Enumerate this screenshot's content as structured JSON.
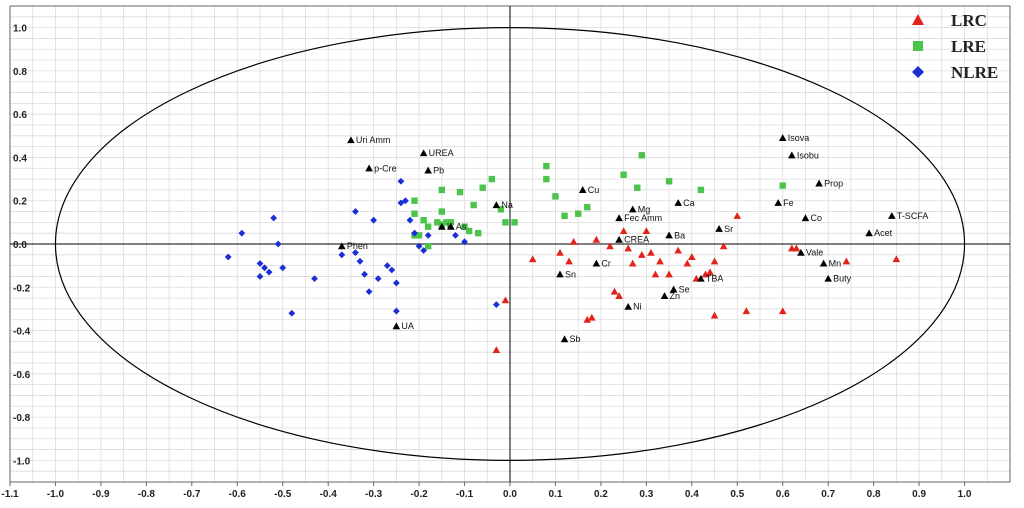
{
  "chart_data": {
    "type": "scatter",
    "title": "",
    "xlabel": "",
    "ylabel": "",
    "xlim": [
      -1.1,
      1.1
    ],
    "ylim": [
      -1.1,
      1.1
    ],
    "grid": true,
    "legend_position": "top-right",
    "x_ticks": [
      "-1.1",
      "-1.0",
      "-0.9",
      "-0.8",
      "-0.7",
      "-0.6",
      "-0.5",
      "-0.4",
      "-0.3",
      "-0.2",
      "-0.1",
      "0.0",
      "0.1",
      "0.2",
      "0.3",
      "0.4",
      "0.5",
      "0.6",
      "0.7",
      "0.8",
      "0.9",
      "1.0"
    ],
    "y_ticks": [
      "1.0",
      "0.8",
      "0.6",
      "0.4",
      "0.2",
      "0.0",
      "-0.2",
      "-0.4",
      "-0.6",
      "-0.8",
      "-1.0"
    ],
    "unit_circle": true,
    "series": [
      {
        "name": "LRC",
        "color": "#e2231a",
        "marker": "triangle",
        "points": [
          [
            0.05,
            -0.07
          ],
          [
            0.11,
            -0.04
          ],
          [
            0.13,
            -0.08
          ],
          [
            0.14,
            0.01
          ],
          [
            0.17,
            -0.35
          ],
          [
            0.18,
            -0.34
          ],
          [
            0.22,
            -0.01
          ],
          [
            0.23,
            -0.22
          ],
          [
            0.24,
            -0.24
          ],
          [
            0.25,
            0.06
          ],
          [
            0.26,
            -0.02
          ],
          [
            0.27,
            -0.09
          ],
          [
            0.29,
            -0.05
          ],
          [
            0.31,
            -0.04
          ],
          [
            0.32,
            -0.14
          ],
          [
            0.33,
            -0.08
          ],
          [
            0.35,
            -0.14
          ],
          [
            0.37,
            -0.03
          ],
          [
            0.39,
            -0.09
          ],
          [
            0.4,
            -0.06
          ],
          [
            0.41,
            -0.16
          ],
          [
            0.43,
            -0.14
          ],
          [
            0.44,
            -0.13
          ],
          [
            0.45,
            -0.08
          ],
          [
            0.45,
            -0.33
          ],
          [
            0.47,
            -0.01
          ],
          [
            0.5,
            0.13
          ],
          [
            0.52,
            -0.31
          ],
          [
            0.6,
            -0.31
          ],
          [
            0.62,
            -0.02
          ],
          [
            0.63,
            -0.02
          ],
          [
            0.74,
            -0.08
          ],
          [
            0.85,
            -0.07
          ],
          [
            -0.01,
            -0.26
          ],
          [
            -0.03,
            -0.49
          ],
          [
            0.3,
            0.06
          ],
          [
            0.19,
            0.02
          ]
        ]
      },
      {
        "name": "LRE",
        "color": "#4cc44c",
        "marker": "square",
        "points": [
          [
            -0.21,
            0.2
          ],
          [
            -0.21,
            0.14
          ],
          [
            -0.2,
            0.04
          ],
          [
            -0.19,
            0.11
          ],
          [
            -0.18,
            0.08
          ],
          [
            -0.18,
            -0.01
          ],
          [
            -0.16,
            0.1
          ],
          [
            -0.15,
            0.09
          ],
          [
            -0.15,
            0.25
          ],
          [
            -0.15,
            0.15
          ],
          [
            -0.14,
            0.1
          ],
          [
            -0.13,
            0.1
          ],
          [
            -0.11,
            0.24
          ],
          [
            -0.1,
            0.08
          ],
          [
            -0.09,
            0.06
          ],
          [
            -0.08,
            0.18
          ],
          [
            -0.07,
            0.05
          ],
          [
            -0.06,
            0.26
          ],
          [
            -0.04,
            0.3
          ],
          [
            -0.02,
            0.16
          ],
          [
            -0.01,
            0.1
          ],
          [
            0.01,
            0.1
          ],
          [
            0.08,
            0.3
          ],
          [
            0.08,
            0.36
          ],
          [
            0.1,
            0.22
          ],
          [
            0.12,
            0.13
          ],
          [
            0.15,
            0.14
          ],
          [
            0.17,
            0.17
          ],
          [
            0.25,
            0.32
          ],
          [
            0.28,
            0.26
          ],
          [
            0.29,
            0.41
          ],
          [
            0.35,
            0.29
          ],
          [
            0.42,
            0.25
          ],
          [
            -0.21,
            0.04
          ],
          [
            0.6,
            0.27
          ]
        ]
      },
      {
        "name": "NLRE",
        "color": "#1a2fd6",
        "marker": "diamond",
        "points": [
          [
            -0.62,
            -0.06
          ],
          [
            -0.59,
            0.05
          ],
          [
            -0.55,
            -0.09
          ],
          [
            -0.55,
            -0.15
          ],
          [
            -0.54,
            -0.11
          ],
          [
            -0.53,
            -0.13
          ],
          [
            -0.52,
            0.12
          ],
          [
            -0.51,
            0.0
          ],
          [
            -0.5,
            -0.11
          ],
          [
            -0.48,
            -0.32
          ],
          [
            -0.43,
            -0.16
          ],
          [
            -0.37,
            -0.05
          ],
          [
            -0.34,
            0.15
          ],
          [
            -0.34,
            -0.04
          ],
          [
            -0.33,
            -0.08
          ],
          [
            -0.32,
            -0.14
          ],
          [
            -0.31,
            -0.22
          ],
          [
            -0.3,
            0.11
          ],
          [
            -0.29,
            -0.16
          ],
          [
            -0.27,
            -0.1
          ],
          [
            -0.26,
            -0.12
          ],
          [
            -0.25,
            -0.18
          ],
          [
            -0.25,
            -0.31
          ],
          [
            -0.24,
            0.29
          ],
          [
            -0.24,
            0.19
          ],
          [
            -0.22,
            0.11
          ],
          [
            -0.21,
            0.05
          ],
          [
            -0.2,
            -0.01
          ],
          [
            -0.19,
            -0.03
          ],
          [
            -0.18,
            0.04
          ],
          [
            -0.12,
            0.04
          ],
          [
            -0.1,
            0.01
          ],
          [
            -0.03,
            -0.28
          ],
          [
            -0.23,
            0.2
          ]
        ]
      }
    ],
    "variables": [
      {
        "label": "Uri Amm",
        "x": -0.35,
        "y": 0.48
      },
      {
        "label": "UREA",
        "x": -0.19,
        "y": 0.42
      },
      {
        "label": "p-Cre",
        "x": -0.31,
        "y": 0.35
      },
      {
        "label": "Pb",
        "x": -0.18,
        "y": 0.34
      },
      {
        "label": "Isova",
        "x": 0.6,
        "y": 0.49
      },
      {
        "label": "Isobu",
        "x": 0.62,
        "y": 0.41
      },
      {
        "label": "Prop",
        "x": 0.68,
        "y": 0.28
      },
      {
        "label": "Cu",
        "x": 0.16,
        "y": 0.25
      },
      {
        "label": "Na",
        "x": -0.03,
        "y": 0.18
      },
      {
        "label": "Ca",
        "x": 0.37,
        "y": 0.19
      },
      {
        "label": "Fe",
        "x": 0.59,
        "y": 0.19
      },
      {
        "label": "Mg",
        "x": 0.27,
        "y": 0.16
      },
      {
        "label": "Fec Amm",
        "x": 0.24,
        "y": 0.12
      },
      {
        "label": "T-SCFA",
        "x": 0.84,
        "y": 0.13
      },
      {
        "label": "Co",
        "x": 0.65,
        "y": 0.12
      },
      {
        "label": "K",
        "x": -0.15,
        "y": 0.08
      },
      {
        "label": "As",
        "x": -0.13,
        "y": 0.08
      },
      {
        "label": "Sr",
        "x": 0.46,
        "y": 0.07
      },
      {
        "label": "Acet",
        "x": 0.79,
        "y": 0.05
      },
      {
        "label": "Ba",
        "x": 0.35,
        "y": 0.04
      },
      {
        "label": "CREA",
        "x": 0.24,
        "y": 0.02
      },
      {
        "label": "Phen",
        "x": -0.37,
        "y": -0.01
      },
      {
        "label": "Vale",
        "x": 0.64,
        "y": -0.04
      },
      {
        "label": "Cr",
        "x": 0.19,
        "y": -0.09
      },
      {
        "label": "Mn",
        "x": 0.69,
        "y": -0.09
      },
      {
        "label": "Sn",
        "x": 0.11,
        "y": -0.14
      },
      {
        "label": "TBA",
        "x": 0.42,
        "y": -0.16
      },
      {
        "label": "Buty",
        "x": 0.7,
        "y": -0.16
      },
      {
        "label": "Se",
        "x": 0.36,
        "y": -0.21
      },
      {
        "label": "Zn",
        "x": 0.34,
        "y": -0.24
      },
      {
        "label": "Ni",
        "x": 0.26,
        "y": -0.29
      },
      {
        "label": "UA",
        "x": -0.25,
        "y": -0.38
      },
      {
        "label": "Sb",
        "x": 0.12,
        "y": -0.44
      }
    ]
  }
}
